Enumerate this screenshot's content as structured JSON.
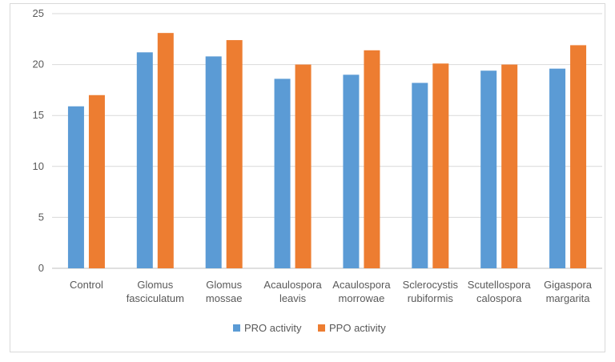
{
  "chart_data": {
    "type": "bar",
    "title": "",
    "xlabel": "",
    "ylabel": "",
    "ylim": [
      0,
      25
    ],
    "yticks": [
      0,
      5,
      10,
      15,
      20,
      25
    ],
    "grid": true,
    "legend_position": "bottom",
    "categories": [
      [
        "Control"
      ],
      [
        "Glomus",
        "fasciculatum"
      ],
      [
        "Glomus",
        "mossae"
      ],
      [
        "Acaulospora",
        "leavis"
      ],
      [
        "Acaulospora",
        "morrowae"
      ],
      [
        "Sclerocystis",
        "rubiformis"
      ],
      [
        "Scutellospora",
        "calospora"
      ],
      [
        "Gigaspora",
        "margarita"
      ]
    ],
    "series": [
      {
        "name": "PRO activity",
        "color": "#5b9bd5",
        "values": [
          15.9,
          21.2,
          20.8,
          18.6,
          19.0,
          18.2,
          19.4,
          19.6
        ]
      },
      {
        "name": "PPO activity",
        "color": "#ed7d31",
        "values": [
          17.0,
          23.1,
          22.4,
          20.0,
          21.4,
          20.1,
          20.0,
          21.9
        ]
      }
    ]
  },
  "colors": {
    "grid": "#d9d9d9",
    "axis": "#bfbfbf",
    "text": "#595959"
  }
}
